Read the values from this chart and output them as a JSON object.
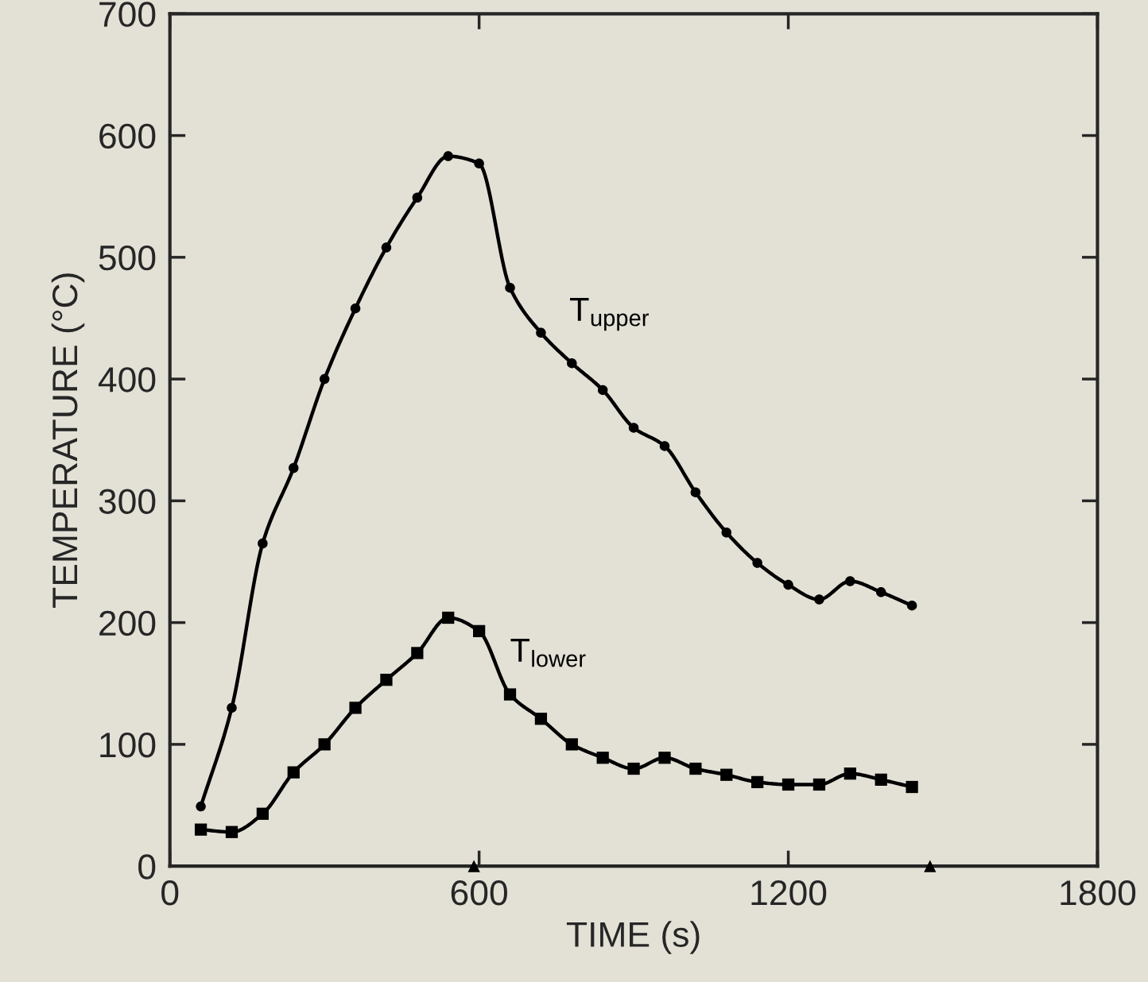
{
  "chart_data": {
    "type": "line",
    "xlabel": "TIME (s)",
    "ylabel": "TEMPERATURE (°C)",
    "x": [
      60,
      120,
      180,
      240,
      300,
      360,
      420,
      480,
      540,
      600,
      660,
      720,
      780,
      840,
      900,
      960,
      1020,
      1080,
      1140,
      1200,
      1260,
      1320,
      1380,
      1440
    ],
    "series": [
      {
        "name": "T$_{upper}$",
        "color": "#000000",
        "marker": "circle",
        "values": [
          49,
          130,
          265,
          327,
          400,
          458,
          508,
          549,
          583,
          577,
          475,
          438,
          413,
          391,
          360,
          345,
          307,
          274,
          249,
          231,
          219,
          234,
          225,
          214
        ]
      },
      {
        "name": "T$_{lower}$",
        "color": "#000000",
        "marker": "square",
        "values": [
          30,
          28,
          43,
          77,
          100,
          130,
          153,
          175,
          204,
          193,
          141,
          121,
          100,
          89,
          80,
          89,
          80,
          75,
          69,
          67,
          67,
          76,
          71,
          65
        ]
      },
      {
        "type": "scatter",
        "color": "#000000",
        "marker": "triangle",
        "x": [
          590,
          1475
        ],
        "values": [
          0,
          0
        ]
      }
    ],
    "xlim": [
      0,
      1800
    ],
    "xticks": [
      0,
      600,
      1200,
      1800
    ],
    "ylim": [
      0,
      700
    ],
    "yticks": [
      0,
      100,
      200,
      300,
      400,
      500,
      600,
      700
    ],
    "grid": false,
    "legend": false
  }
}
